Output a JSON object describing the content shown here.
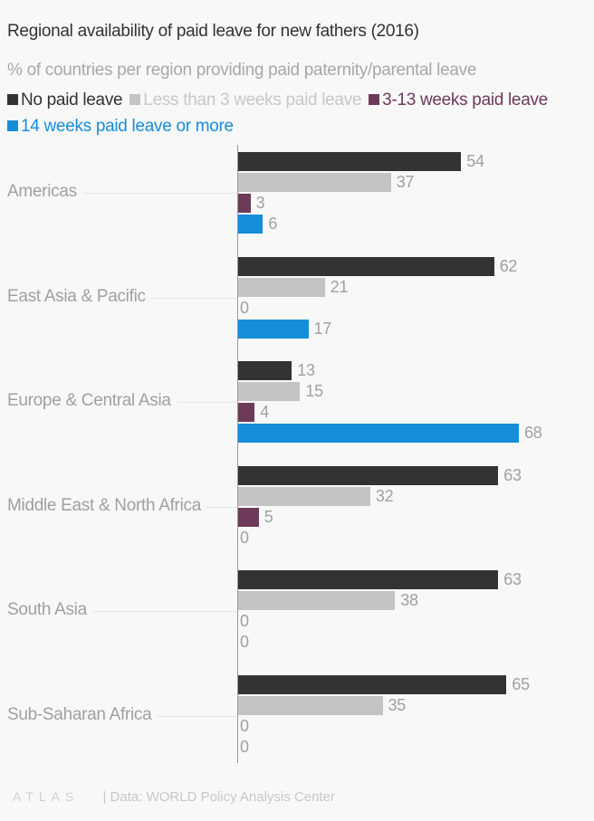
{
  "header": {
    "title": "Regional availability of paid leave for new fathers (2016)",
    "subtitle": "% of countries per region providing paid paternity/parental leave"
  },
  "legend": [
    {
      "label": "No paid leave",
      "color": "#333333",
      "text_color": "#333333"
    },
    {
      "label": "Less than 3 weeks paid leave",
      "color": "#c4c4c4",
      "text_color": "#c8c8c8"
    },
    {
      "label": "3-13 weeks paid leave",
      "color": "#6d3a5a",
      "text_color": "#6d3a5a"
    },
    {
      "label": "14 weeks paid leave or more",
      "color": "#168dd9",
      "text_color": "#168dd9"
    }
  ],
  "footer": {
    "logo": "ATLAS",
    "source": "| Data: WORLD Policy Analysis Center"
  },
  "chart_data": {
    "type": "bar",
    "orientation": "horizontal",
    "title": "Regional availability of paid leave for new fathers (2016)",
    "subtitle": "% of countries per region providing paid paternity/parental leave",
    "xlabel": "",
    "ylabel": "",
    "xlim": [
      0,
      70
    ],
    "grid": false,
    "legend_position": "top",
    "categories": [
      "Americas",
      "East Asia & Pacific",
      "Europe & Central Asia",
      "Middle East & North Africa",
      "South Asia",
      "Sub-Saharan Africa"
    ],
    "series": [
      {
        "name": "No paid leave",
        "color": "#333333",
        "values": [
          54,
          62,
          13,
          63,
          63,
          65
        ]
      },
      {
        "name": "Less than 3 weeks paid leave",
        "color": "#c4c4c4",
        "values": [
          37,
          21,
          15,
          32,
          38,
          35
        ]
      },
      {
        "name": "3-13 weeks paid leave",
        "color": "#6d3a5a",
        "values": [
          3,
          0,
          4,
          5,
          0,
          0
        ]
      },
      {
        "name": "14 weeks paid leave or more",
        "color": "#168dd9",
        "values": [
          6,
          17,
          68,
          0,
          0,
          0
        ]
      }
    ],
    "source": "WORLD Policy Analysis Center"
  }
}
